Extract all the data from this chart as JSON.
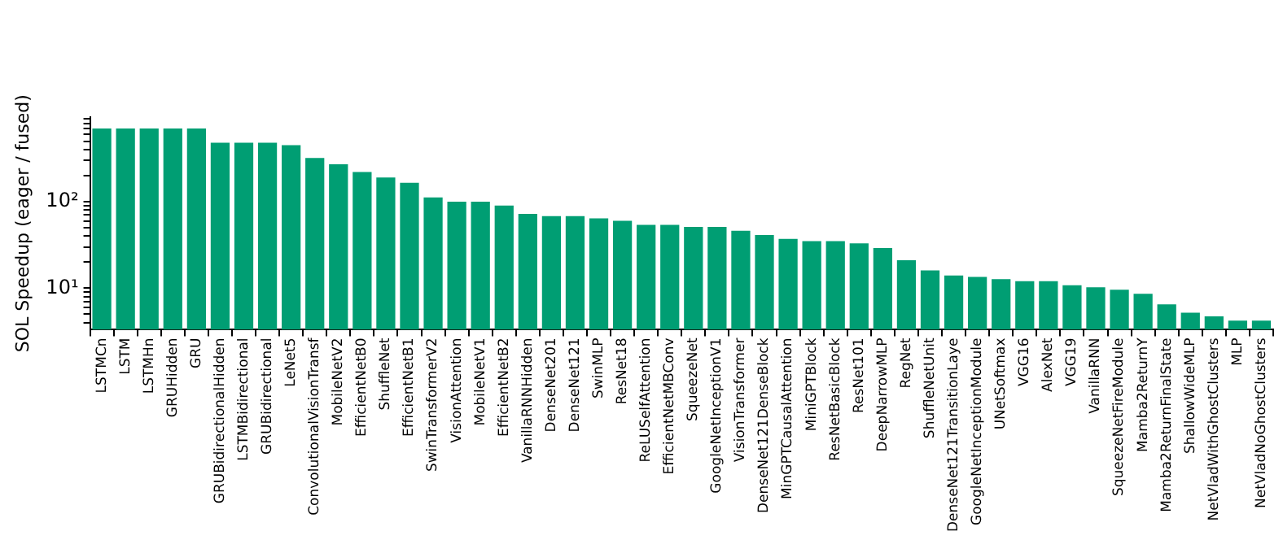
{
  "chart_data": {
    "type": "bar",
    "ylabel": "SOL Speedup (eager / fused)",
    "categories": [
      "LSTMCn",
      "LSTM",
      "LSTMHn",
      "GRUHidden",
      "GRU",
      "GRUBidirectionalHidden",
      "LSTMBidirectional",
      "GRUBidirectional",
      "LeNet5",
      "ConvolutionalVisionTransf",
      "MobileNetV2",
      "EfficientNetB0",
      "ShuffleNet",
      "EfficientNetB1",
      "SwinTransformerV2",
      "VisionAttention",
      "MobileNetV1",
      "EfficientNetB2",
      "VanillaRNNHidden",
      "DenseNet201",
      "DenseNet121",
      "SwinMLP",
      "ResNet18",
      "ReLUSelfAttention",
      "EfficientNetMBConv",
      "SqueezeNet",
      "GoogleNetInceptionV1",
      "VisionTransformer",
      "DenseNet121DenseBlock",
      "MinGPTCausalAttention",
      "MiniGPTBlock",
      "ResNetBasicBlock",
      "ResNet101",
      "DeepNarrowMLP",
      "RegNet",
      "ShuffleNetUnit",
      "DenseNet121TransitionLaye",
      "GoogleNetInceptionModule",
      "UNetSoftmax",
      "VGG16",
      "AlexNet",
      "VGG19",
      "VanillaRNN",
      "SqueezeNetFireModule",
      "Mamba2ReturnY",
      "Mamba2ReturnFinalState",
      "ShallowWideMLP",
      "NetVladWithGhostClusters",
      "MLP",
      "NetVladNoGhostClusters"
    ],
    "values": [
      700,
      700,
      700,
      700,
      700,
      480,
      480,
      480,
      450,
      320,
      270,
      220,
      190,
      165,
      112,
      100,
      100,
      90,
      72,
      68,
      68,
      64,
      60,
      54,
      54,
      51,
      51,
      46,
      41,
      37,
      35,
      35,
      33,
      29,
      21,
      16,
      14,
      13.5,
      12.7,
      12,
      12,
      10.8,
      10.2,
      9.6,
      8.6,
      6.5,
      5.2,
      4.7,
      4.2,
      4.2
    ],
    "color": "#009e73",
    "log": true,
    "ylim": [
      3.3,
      950
    ],
    "yticks": [
      {
        "value": 4,
        "label": null
      },
      {
        "value": 5,
        "label": null
      },
      {
        "value": 6,
        "label": null
      },
      {
        "value": 7,
        "label": null
      },
      {
        "value": 8,
        "label": null
      },
      {
        "value": 9,
        "label": null
      },
      {
        "value": 10,
        "label": "10¹"
      },
      {
        "value": 20,
        "label": null
      },
      {
        "value": 30,
        "label": null
      },
      {
        "value": 40,
        "label": null
      },
      {
        "value": 50,
        "label": null
      },
      {
        "value": 60,
        "label": null
      },
      {
        "value": 70,
        "label": null
      },
      {
        "value": 80,
        "label": null
      },
      {
        "value": 90,
        "label": null
      },
      {
        "value": 100,
        "label": "10²"
      },
      {
        "value": 200,
        "label": null
      },
      {
        "value": 300,
        "label": null
      },
      {
        "value": 400,
        "label": null
      },
      {
        "value": 500,
        "label": null
      },
      {
        "value": 600,
        "label": null
      },
      {
        "value": 700,
        "label": null
      },
      {
        "value": 800,
        "label": null
      },
      {
        "value": 900,
        "label": null
      }
    ],
    "grid": false,
    "legend": false
  }
}
